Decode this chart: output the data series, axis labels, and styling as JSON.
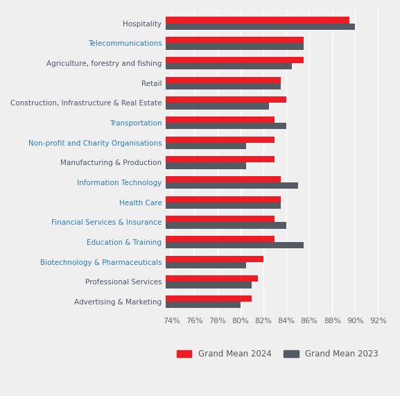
{
  "categories": [
    "Advertising & Marketing",
    "Professional Services",
    "Biotechnology & Pharmaceuticals",
    "Education & Training",
    "Financial Services & Insurance",
    "Health Care",
    "Information Technology",
    "Manufacturing & Production",
    "Non-profit and Charity Organisations",
    "Transportation",
    "Construction, Infrastructure & Real Estate",
    "Retail",
    "Agriculture, forestry and fishing",
    "Telecommunications",
    "Hospitality"
  ],
  "values_2024": [
    81.0,
    81.5,
    82.0,
    83.0,
    83.0,
    83.5,
    83.5,
    83.0,
    83.0,
    83.0,
    84.0,
    83.5,
    85.5,
    85.5,
    89.5
  ],
  "values_2023": [
    80.0,
    81.0,
    80.5,
    85.5,
    84.0,
    83.5,
    85.0,
    80.5,
    80.5,
    84.0,
    82.5,
    83.5,
    84.5,
    85.5,
    90.0
  ],
  "color_2024": "#ee1c25",
  "color_2023": "#555962",
  "background_color": "#efefef",
  "xlim_min": 73.5,
  "xlim_max": 93.0,
  "xticks": [
    74,
    76,
    78,
    80,
    82,
    84,
    86,
    88,
    90,
    92
  ],
  "xtick_labels": [
    "74%",
    "76%",
    "78%",
    "80%",
    "82%",
    "84%",
    "86%",
    "88%",
    "90%",
    "92%"
  ],
  "label_color_default": "#4a5568",
  "label_color_highlight": [
    "Telecommunications",
    "Transportation",
    "Non-profit and Charity Organisations",
    "Financial Services & Insurance",
    "Education & Training",
    "Biotechnology & Pharmaceuticals",
    "Information Technology",
    "Health Care"
  ],
  "highlight_color": "#2b7bb9",
  "legend_label_2024": "Grand Mean 2024",
  "legend_label_2023": "Grand Mean 2023",
  "bar_height": 0.32,
  "gridcolor": "#ffffff",
  "label_fontsize": 7.5,
  "tick_label_fontsize": 8.0
}
